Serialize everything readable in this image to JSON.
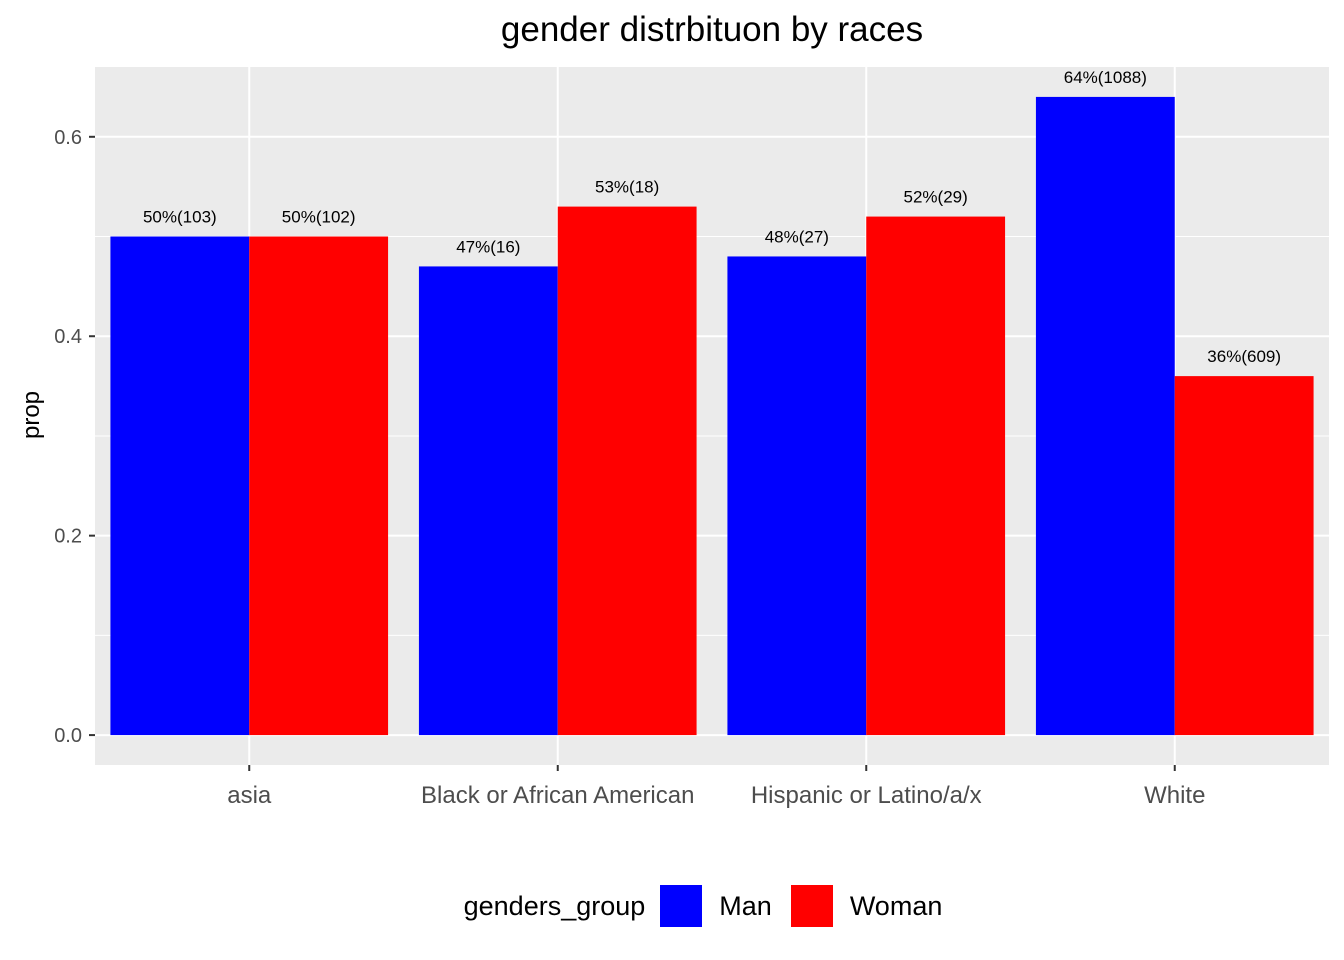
{
  "chart_data": {
    "type": "bar",
    "title": "gender distrbituon by races",
    "xlabel": "",
    "ylabel": "prop",
    "ylim": [
      -0.03,
      0.67
    ],
    "yticks": [
      0.0,
      0.2,
      0.4,
      0.6
    ],
    "ytick_labels": [
      "0.0",
      "0.2",
      "0.4",
      "0.6"
    ],
    "categories": [
      "asia",
      "Black or African American",
      "Hispanic or Latino/a/x",
      "White"
    ],
    "series": [
      {
        "name": "Man",
        "color": "#0000FF",
        "values": [
          0.5,
          0.47,
          0.48,
          0.64
        ],
        "labels": [
          "50%(103)",
          "47%(16)",
          "48%(27)",
          "64%(1088)"
        ]
      },
      {
        "name": "Woman",
        "color": "#FF0000",
        "values": [
          0.5,
          0.53,
          0.52,
          0.36
        ],
        "labels": [
          "50%(102)",
          "53%(18)",
          "52%(29)",
          "36%(609)"
        ]
      }
    ],
    "grid": true,
    "legend_title": "genders_group",
    "legend_position": "bottom"
  }
}
